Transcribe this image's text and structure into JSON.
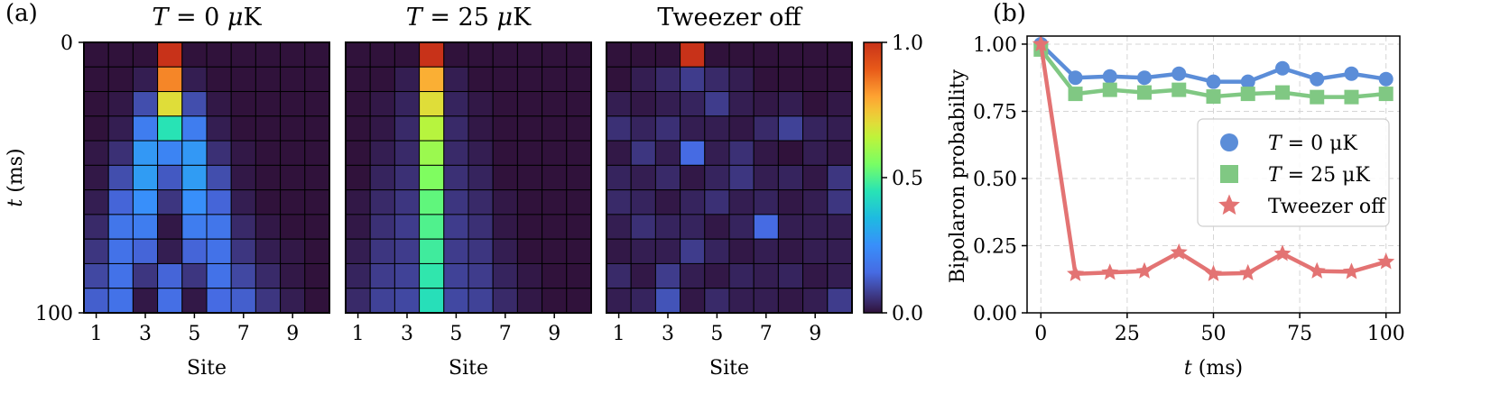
{
  "panel_labels": {
    "a": "(a)",
    "b": "(b)"
  },
  "chart_data": [
    {
      "type": "heatmap",
      "title": "T = 0 μK",
      "xlabel": "Site",
      "ylabel": "t (ms)",
      "x_ticks": [
        "1",
        "3",
        "5",
        "7",
        "9"
      ],
      "y_ticks": [
        "0",
        "100"
      ],
      "sites": [
        1,
        2,
        3,
        4,
        5,
        6,
        7,
        8,
        9,
        10
      ],
      "times_ms": [
        0,
        10,
        20,
        30,
        40,
        50,
        60,
        70,
        80,
        90,
        100
      ],
      "colorscale": "turbo",
      "values": [
        [
          0.0,
          0.0,
          0.0,
          1.0,
          0.0,
          0.0,
          0.0,
          0.0,
          0.0,
          0.0
        ],
        [
          0.0,
          0.0,
          0.02,
          0.84,
          0.02,
          0.0,
          0.0,
          0.0,
          0.0,
          0.0
        ],
        [
          0.0,
          0.01,
          0.1,
          0.7,
          0.1,
          0.01,
          0.0,
          0.0,
          0.0,
          0.0
        ],
        [
          0.0,
          0.02,
          0.2,
          0.45,
          0.2,
          0.02,
          0.0,
          0.0,
          0.0,
          0.0
        ],
        [
          0.01,
          0.05,
          0.27,
          0.22,
          0.27,
          0.05,
          0.01,
          0.0,
          0.0,
          0.0
        ],
        [
          0.01,
          0.1,
          0.28,
          0.12,
          0.28,
          0.1,
          0.01,
          0.0,
          0.0,
          0.0
        ],
        [
          0.02,
          0.14,
          0.25,
          0.06,
          0.25,
          0.14,
          0.02,
          0.0,
          0.0,
          0.0
        ],
        [
          0.04,
          0.18,
          0.2,
          0.01,
          0.2,
          0.18,
          0.04,
          0.01,
          0.0,
          0.0
        ],
        [
          0.06,
          0.17,
          0.14,
          0.02,
          0.14,
          0.17,
          0.06,
          0.02,
          0.01,
          0.0
        ],
        [
          0.09,
          0.17,
          0.06,
          0.14,
          0.06,
          0.17,
          0.09,
          0.04,
          0.01,
          0.0
        ],
        [
          0.13,
          0.17,
          0.01,
          0.16,
          0.01,
          0.15,
          0.13,
          0.06,
          0.02,
          0.0
        ]
      ]
    },
    {
      "type": "heatmap",
      "title": "T = 25 μK",
      "xlabel": "Site",
      "x_ticks": [
        "1",
        "3",
        "5",
        "7",
        "9"
      ],
      "sites": [
        1,
        2,
        3,
        4,
        5,
        6,
        7,
        8,
        9,
        10
      ],
      "times_ms": [
        0,
        10,
        20,
        30,
        40,
        50,
        60,
        70,
        80,
        90,
        100
      ],
      "colorscale": "turbo",
      "values": [
        [
          0.0,
          0.0,
          0.0,
          1.0,
          0.0,
          0.0,
          0.0,
          0.0,
          0.0,
          0.0
        ],
        [
          0.0,
          0.0,
          0.02,
          0.78,
          0.02,
          0.0,
          0.0,
          0.0,
          0.0,
          0.0
        ],
        [
          0.0,
          0.01,
          0.03,
          0.7,
          0.03,
          0.01,
          0.0,
          0.0,
          0.0,
          0.0
        ],
        [
          0.0,
          0.01,
          0.04,
          0.64,
          0.04,
          0.01,
          0.0,
          0.0,
          0.0,
          0.0
        ],
        [
          0.0,
          0.02,
          0.04,
          0.6,
          0.04,
          0.02,
          0.0,
          0.0,
          0.0,
          0.0
        ],
        [
          0.0,
          0.03,
          0.05,
          0.56,
          0.05,
          0.03,
          0.0,
          0.0,
          0.0,
          0.0
        ],
        [
          0.01,
          0.04,
          0.06,
          0.52,
          0.06,
          0.04,
          0.01,
          0.0,
          0.0,
          0.0
        ],
        [
          0.01,
          0.05,
          0.07,
          0.5,
          0.07,
          0.05,
          0.01,
          0.0,
          0.0,
          0.0
        ],
        [
          0.02,
          0.06,
          0.07,
          0.48,
          0.07,
          0.06,
          0.02,
          0.0,
          0.0,
          0.0
        ],
        [
          0.03,
          0.07,
          0.08,
          0.46,
          0.08,
          0.07,
          0.03,
          0.01,
          0.0,
          0.0
        ],
        [
          0.04,
          0.08,
          0.09,
          0.44,
          0.09,
          0.08,
          0.04,
          0.01,
          0.0,
          0.0
        ]
      ]
    },
    {
      "type": "heatmap",
      "title": "Tweezer off",
      "xlabel": "Site",
      "x_ticks": [
        "1",
        "3",
        "5",
        "7",
        "9"
      ],
      "sites": [
        1,
        2,
        3,
        4,
        5,
        6,
        7,
        8,
        9,
        10
      ],
      "times_ms": [
        0,
        10,
        20,
        30,
        40,
        50,
        60,
        70,
        80,
        90,
        100
      ],
      "colorscale": "turbo",
      "values": [
        [
          0.0,
          0.0,
          0.0,
          1.0,
          0.0,
          0.0,
          0.0,
          0.0,
          0.0,
          0.0
        ],
        [
          0.0,
          0.02,
          0.04,
          0.07,
          0.04,
          0.02,
          0.0,
          0.0,
          0.0,
          0.0
        ],
        [
          0.02,
          0.01,
          0.02,
          0.03,
          0.07,
          0.02,
          0.01,
          0.02,
          0.0,
          0.01
        ],
        [
          0.05,
          0.03,
          0.05,
          0.02,
          0.02,
          0.01,
          0.04,
          0.08,
          0.03,
          0.02
        ],
        [
          0.01,
          0.06,
          0.02,
          0.15,
          0.02,
          0.05,
          0.01,
          0.0,
          0.02,
          0.01
        ],
        [
          0.03,
          0.02,
          0.04,
          0.01,
          0.03,
          0.06,
          0.02,
          0.03,
          0.01,
          0.06
        ],
        [
          0.04,
          0.03,
          0.01,
          0.03,
          0.05,
          0.02,
          0.03,
          0.01,
          0.02,
          0.06
        ],
        [
          0.02,
          0.05,
          0.03,
          0.03,
          0.01,
          0.03,
          0.15,
          0.02,
          0.02,
          0.02
        ],
        [
          0.01,
          0.02,
          0.02,
          0.07,
          0.03,
          0.01,
          0.02,
          0.01,
          0.02,
          0.02
        ],
        [
          0.04,
          0.01,
          0.07,
          0.02,
          0.01,
          0.03,
          0.02,
          0.03,
          0.01,
          0.02
        ],
        [
          0.02,
          0.03,
          0.11,
          0.01,
          0.04,
          0.02,
          0.02,
          0.01,
          0.02,
          0.07
        ]
      ]
    },
    {
      "type": "line",
      "xlabel": "t (ms)",
      "ylabel": "Bipolaron probability",
      "xlim": [
        -4,
        104
      ],
      "ylim": [
        0.0,
        1.03
      ],
      "x_ticks": [
        0,
        25,
        50,
        75,
        100
      ],
      "y_ticks": [
        0.0,
        0.25,
        0.5,
        0.75,
        1.0
      ],
      "y_tick_labels": [
        "0.00",
        "0.25",
        "0.50",
        "0.75",
        "1.00"
      ],
      "grid": true,
      "legend_position": "center-right",
      "x": [
        0,
        10,
        20,
        30,
        40,
        50,
        60,
        70,
        80,
        90,
        100
      ],
      "series": [
        {
          "name": "T = 0 μK",
          "color": "#5b8dd8",
          "marker": "circle",
          "values": [
            1.0,
            0.875,
            0.88,
            0.875,
            0.89,
            0.86,
            0.86,
            0.91,
            0.87,
            0.89,
            0.87
          ]
        },
        {
          "name": "T = 25 μK",
          "color": "#80c883",
          "marker": "square",
          "values": [
            0.98,
            0.815,
            0.83,
            0.82,
            0.83,
            0.805,
            0.815,
            0.82,
            0.803,
            0.803,
            0.815
          ]
        },
        {
          "name": "Tweezer off",
          "color": "#e37373",
          "marker": "star",
          "values": [
            1.0,
            0.145,
            0.15,
            0.155,
            0.225,
            0.145,
            0.148,
            0.22,
            0.155,
            0.153,
            0.19
          ]
        }
      ]
    }
  ],
  "colorbar": {
    "ticks": [
      "1.0",
      "0.5",
      "0.0"
    ],
    "tick_values": [
      1.0,
      0.5,
      0.0
    ],
    "colorscale": "turbo"
  }
}
